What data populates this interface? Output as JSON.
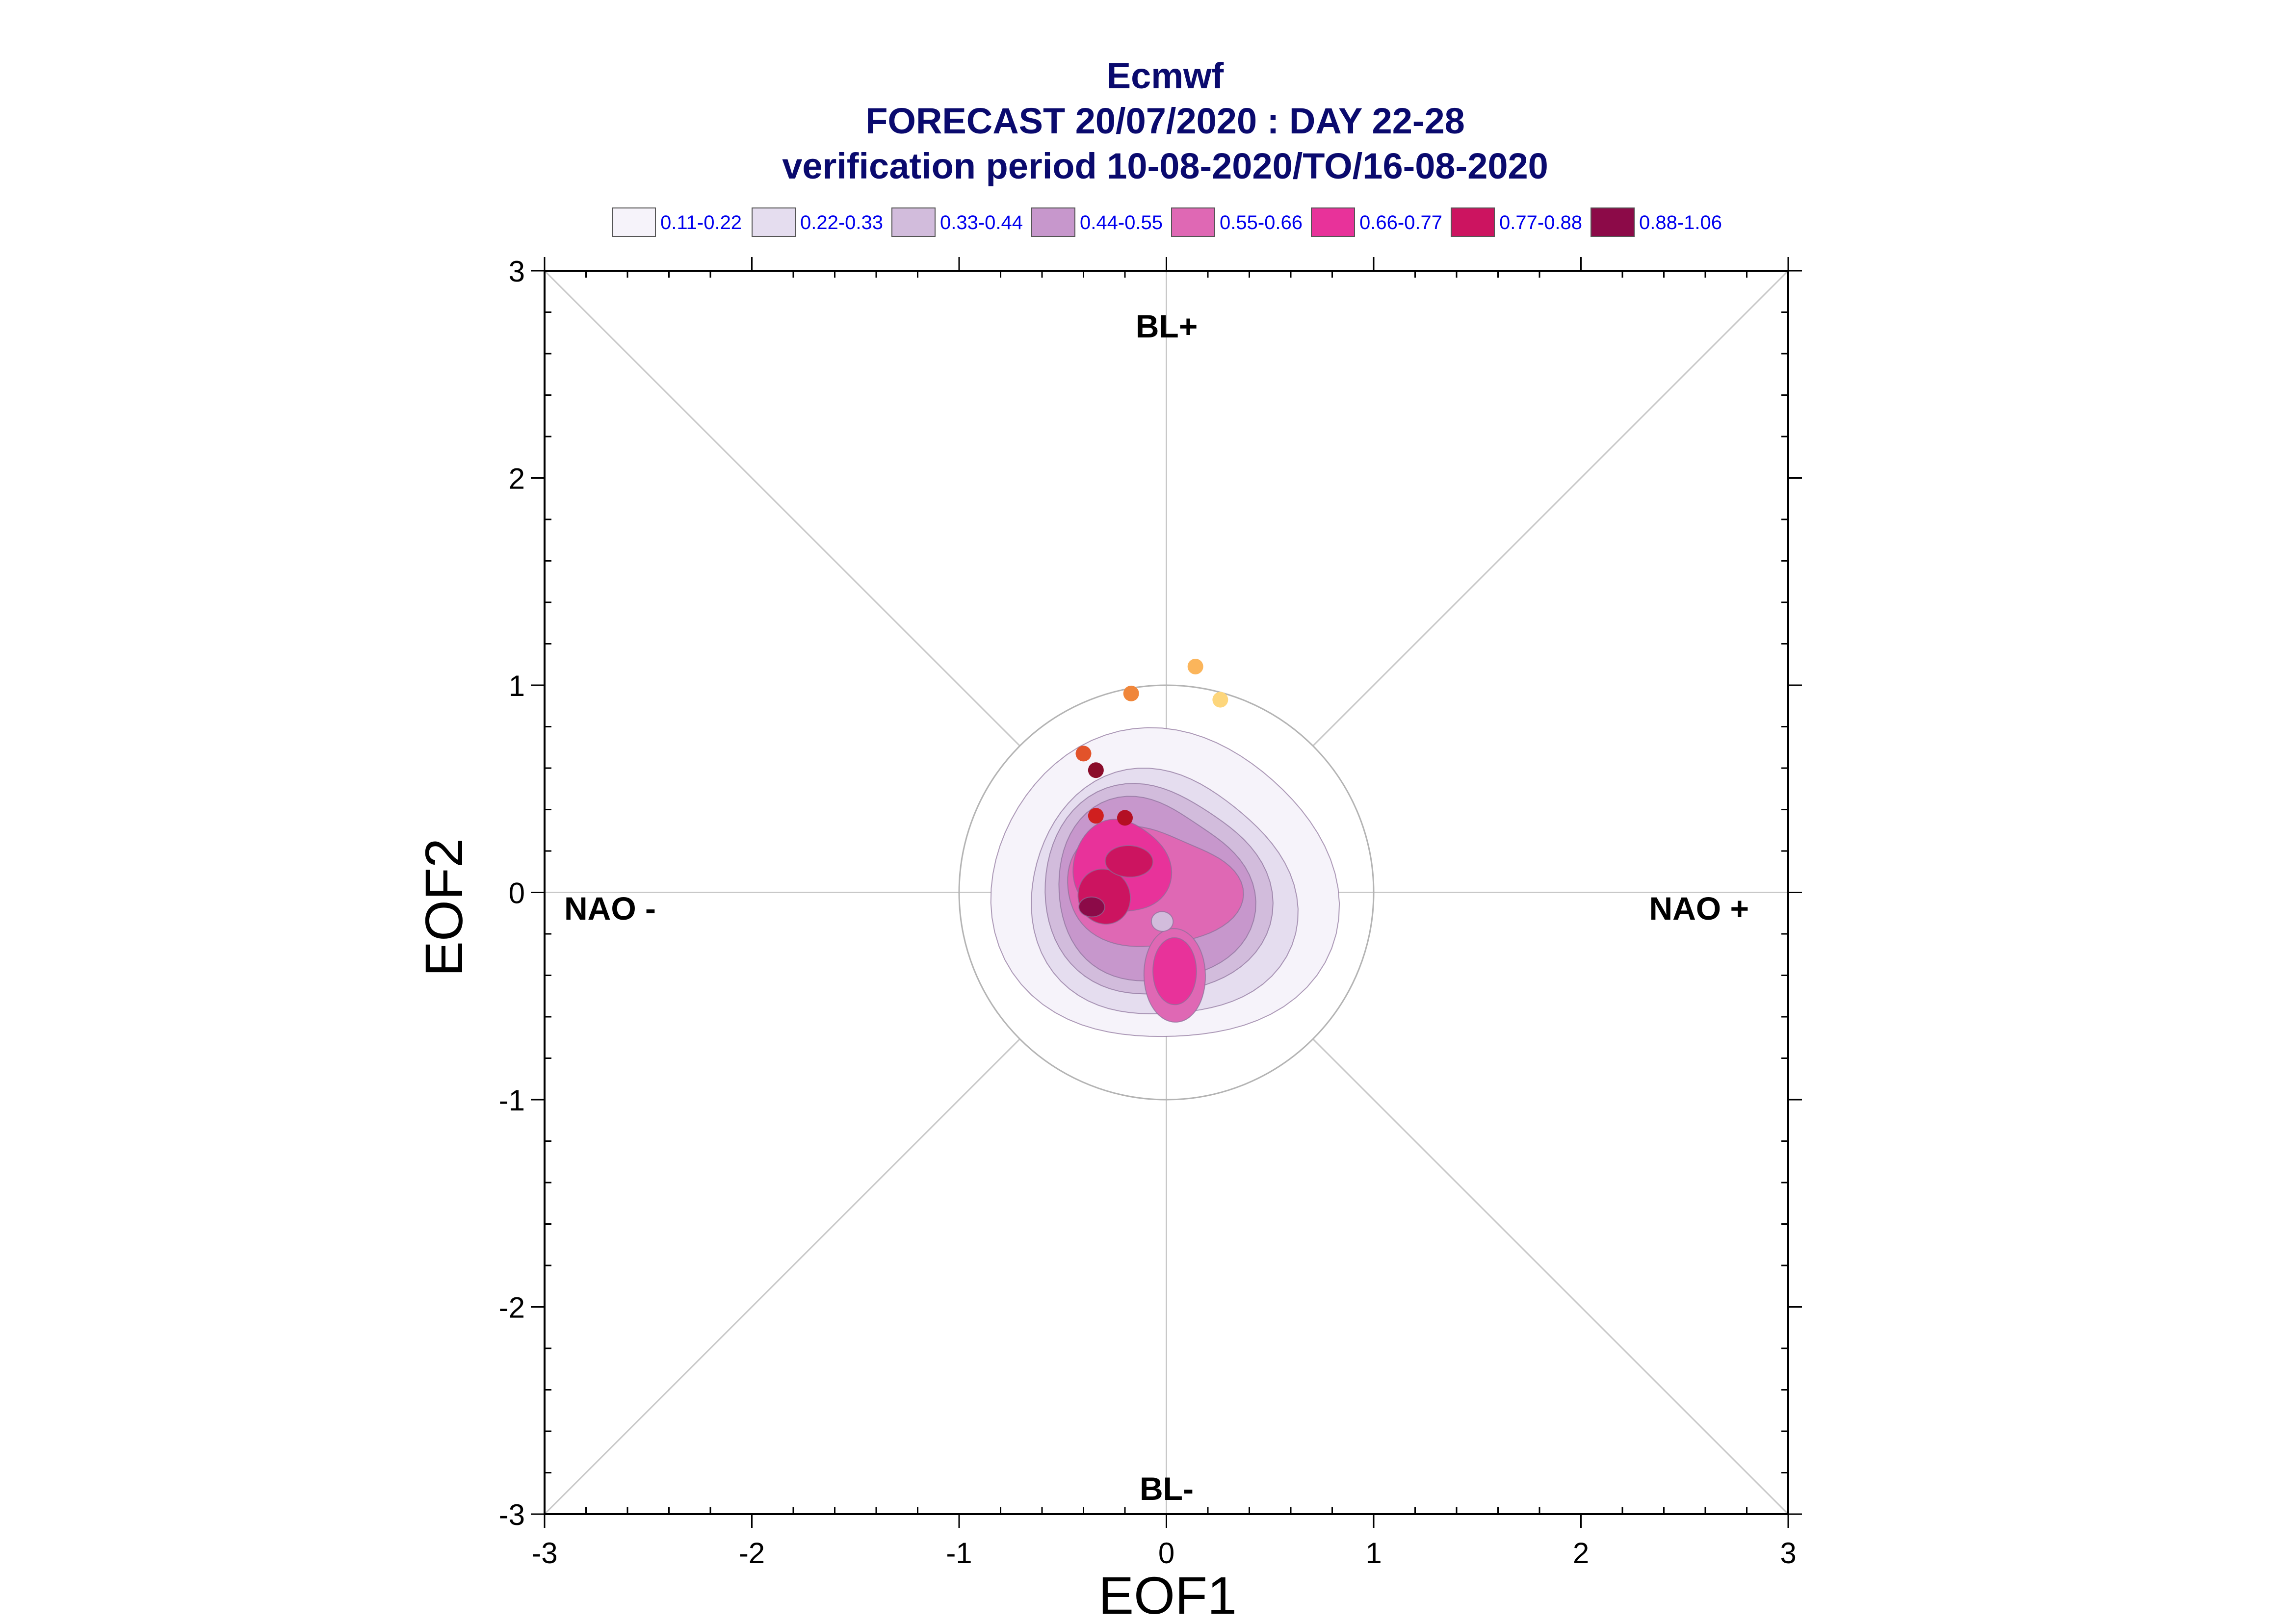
{
  "chart_data": {
    "type": "scatter",
    "title": "Ecmwf",
    "subtitle_1": "FORECAST 20/07/2020 : DAY 22-28",
    "subtitle_2": "verification period 10-08-2020/TO/16-08-2020",
    "xlabel": "EOF1",
    "ylabel": "EOF2",
    "xlim": [
      -3,
      3
    ],
    "ylim": [
      -3,
      3
    ],
    "x_ticks": [
      "-3",
      "-2",
      "-1",
      "0",
      "1",
      "2",
      "3"
    ],
    "y_ticks": [
      "3",
      "2",
      "1",
      "0",
      "-1",
      "-2",
      "-3"
    ],
    "regime_labels": {
      "top": "BL+",
      "bottom": "BL-",
      "left": "NAO -",
      "right": "NAO +"
    },
    "unit_circle_radius": 1,
    "legend": [
      {
        "label": "0.11-0.22",
        "color": "#f6f3fa"
      },
      {
        "label": "0.22-0.33",
        "color": "#e5ddef"
      },
      {
        "label": "0.33-0.44",
        "color": "#d2bcdc"
      },
      {
        "label": "0.44-0.55",
        "color": "#c797cc"
      },
      {
        "label": "0.55-0.66",
        "color": "#df68b4"
      },
      {
        "label": "0.66-0.77",
        "color": "#e8329a"
      },
      {
        "label": "0.77-0.88",
        "color": "#cc1460"
      },
      {
        "label": "0.88-1.06",
        "color": "#8c0a48"
      }
    ],
    "density_max": [
      -0.36,
      -0.07
    ],
    "daily_points": [
      {
        "x": 0.14,
        "y": 1.09,
        "color": "#fbb55b"
      },
      {
        "x": 0.26,
        "y": 0.93,
        "color": "#fdd67c"
      },
      {
        "x": -0.17,
        "y": 0.96,
        "color": "#f0863a"
      },
      {
        "x": -0.4,
        "y": 0.67,
        "color": "#e2532a"
      },
      {
        "x": -0.34,
        "y": 0.59,
        "color": "#8a0c2a"
      },
      {
        "x": -0.34,
        "y": 0.37,
        "color": "#d01f1f"
      },
      {
        "x": -0.2,
        "y": 0.36,
        "color": "#b40f24"
      }
    ]
  }
}
